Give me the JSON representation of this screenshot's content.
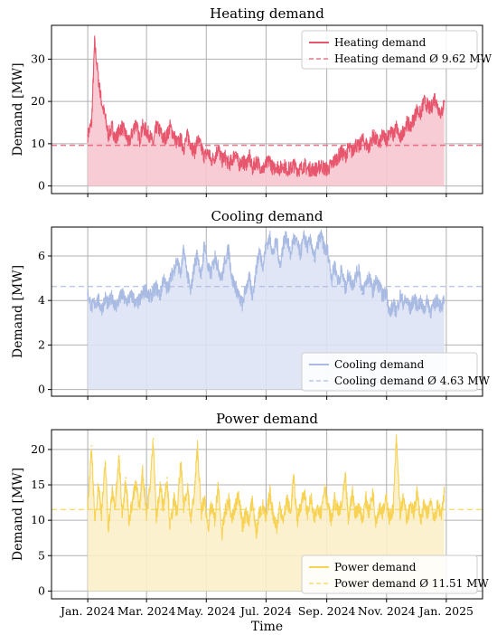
{
  "chart_data": [
    {
      "type": "area",
      "title": "Heating demand",
      "ylabel": "Demand [MW]",
      "ylim": [
        -1.8,
        38
      ],
      "yticks": [
        0,
        10,
        20,
        30
      ],
      "color": "#e8566e",
      "fill": "#f7c6cf",
      "mean": 9.62,
      "legend": [
        "Heating demand",
        "Heating demand Ø 9.62 MW"
      ],
      "legend_position": "top-right",
      "x": [
        "2024-01-01",
        "2024-01-05",
        "2024-01-08",
        "2024-01-12",
        "2024-01-15",
        "2024-01-19",
        "2024-01-22",
        "2024-01-26",
        "2024-01-29",
        "2024-02-02",
        "2024-02-05",
        "2024-02-09",
        "2024-02-12",
        "2024-02-16",
        "2024-02-19",
        "2024-02-23",
        "2024-02-26",
        "2024-03-01",
        "2024-03-04",
        "2024-03-08",
        "2024-03-11",
        "2024-03-15",
        "2024-03-18",
        "2024-03-22",
        "2024-03-25",
        "2024-03-29",
        "2024-04-01",
        "2024-04-05",
        "2024-04-08",
        "2024-04-12",
        "2024-04-15",
        "2024-04-19",
        "2024-04-22",
        "2024-04-26",
        "2024-04-29",
        "2024-05-03",
        "2024-05-06",
        "2024-05-10",
        "2024-05-13",
        "2024-05-17",
        "2024-05-20",
        "2024-05-24",
        "2024-05-27",
        "2024-05-31",
        "2024-06-03",
        "2024-06-07",
        "2024-06-10",
        "2024-06-14",
        "2024-06-17",
        "2024-06-21",
        "2024-06-24",
        "2024-06-28",
        "2024-07-01",
        "2024-07-05",
        "2024-07-08",
        "2024-07-12",
        "2024-07-15",
        "2024-07-19",
        "2024-07-22",
        "2024-07-26",
        "2024-07-29",
        "2024-08-02",
        "2024-08-05",
        "2024-08-09",
        "2024-08-12",
        "2024-08-16",
        "2024-08-19",
        "2024-08-23",
        "2024-08-26",
        "2024-08-30",
        "2024-09-02",
        "2024-09-06",
        "2024-09-09",
        "2024-09-13",
        "2024-09-16",
        "2024-09-20",
        "2024-09-23",
        "2024-09-27",
        "2024-09-30",
        "2024-10-04",
        "2024-10-07",
        "2024-10-11",
        "2024-10-14",
        "2024-10-18",
        "2024-10-21",
        "2024-10-25",
        "2024-10-28",
        "2024-11-01",
        "2024-11-04",
        "2024-11-08",
        "2024-11-11",
        "2024-11-15",
        "2024-11-18",
        "2024-11-22",
        "2024-11-25",
        "2024-11-29",
        "2024-12-02",
        "2024-12-06",
        "2024-12-09",
        "2024-12-13",
        "2024-12-16",
        "2024-12-20",
        "2024-12-23",
        "2024-12-27",
        "2024-12-30"
      ],
      "y": [
        12,
        15,
        34,
        25,
        20,
        16,
        12,
        14,
        11,
        13,
        14,
        12,
        10,
        13,
        15,
        11,
        14,
        13,
        12,
        10,
        14,
        13,
        11,
        12,
        14,
        12,
        10,
        11,
        9,
        12,
        10,
        8,
        11,
        9,
        7,
        8,
        6,
        7,
        9,
        6,
        7,
        5,
        6,
        8,
        5,
        6,
        5,
        7,
        4,
        6,
        5,
        4,
        5,
        6,
        4,
        5,
        4,
        5,
        4,
        4,
        5,
        4,
        4,
        5,
        4,
        4,
        4,
        4,
        5,
        4,
        4,
        5,
        6,
        7,
        8,
        7,
        9,
        8,
        10,
        9,
        11,
        10,
        9,
        12,
        11,
        10,
        12,
        11,
        13,
        12,
        14,
        11,
        13,
        15,
        14,
        16,
        18,
        17,
        20,
        19,
        18,
        21,
        19,
        17,
        20
      ]
    },
    {
      "type": "area",
      "title": "Cooling demand",
      "ylabel": "Demand [MW]",
      "ylim": [
        -0.3,
        7.3
      ],
      "yticks": [
        0,
        2,
        4,
        6
      ],
      "color": "#a9bbe3",
      "fill": "#dde3f4",
      "mean": 4.63,
      "legend": [
        "Cooling demand",
        "Cooling demand Ø 4.63 MW"
      ],
      "legend_position": "bottom-right",
      "x": [
        "2024-01-01",
        "2024-01-05",
        "2024-01-08",
        "2024-01-12",
        "2024-01-15",
        "2024-01-19",
        "2024-01-22",
        "2024-01-26",
        "2024-01-29",
        "2024-02-02",
        "2024-02-05",
        "2024-02-09",
        "2024-02-12",
        "2024-02-16",
        "2024-02-19",
        "2024-02-23",
        "2024-02-26",
        "2024-03-01",
        "2024-03-04",
        "2024-03-08",
        "2024-03-11",
        "2024-03-15",
        "2024-03-18",
        "2024-03-22",
        "2024-03-25",
        "2024-03-29",
        "2024-04-01",
        "2024-04-05",
        "2024-04-08",
        "2024-04-12",
        "2024-04-15",
        "2024-04-19",
        "2024-04-22",
        "2024-04-26",
        "2024-04-29",
        "2024-05-03",
        "2024-05-06",
        "2024-05-10",
        "2024-05-13",
        "2024-05-17",
        "2024-05-20",
        "2024-05-24",
        "2024-05-27",
        "2024-05-31",
        "2024-06-03",
        "2024-06-07",
        "2024-06-10",
        "2024-06-14",
        "2024-06-17",
        "2024-06-21",
        "2024-06-24",
        "2024-06-28",
        "2024-07-01",
        "2024-07-05",
        "2024-07-08",
        "2024-07-12",
        "2024-07-15",
        "2024-07-19",
        "2024-07-22",
        "2024-07-26",
        "2024-07-29",
        "2024-08-02",
        "2024-08-05",
        "2024-08-09",
        "2024-08-12",
        "2024-08-16",
        "2024-08-19",
        "2024-08-23",
        "2024-08-26",
        "2024-08-30",
        "2024-09-02",
        "2024-09-06",
        "2024-09-09",
        "2024-09-13",
        "2024-09-16",
        "2024-09-20",
        "2024-09-23",
        "2024-09-27",
        "2024-09-30",
        "2024-10-04",
        "2024-10-07",
        "2024-10-11",
        "2024-10-14",
        "2024-10-18",
        "2024-10-21",
        "2024-10-25",
        "2024-10-28",
        "2024-11-01",
        "2024-11-04",
        "2024-11-08",
        "2024-11-11",
        "2024-11-15",
        "2024-11-18",
        "2024-11-22",
        "2024-11-25",
        "2024-11-29",
        "2024-12-02",
        "2024-12-06",
        "2024-12-09",
        "2024-12-13",
        "2024-12-16",
        "2024-12-20",
        "2024-12-23",
        "2024-12-27",
        "2024-12-30"
      ],
      "y": [
        4.3,
        3.7,
        3.9,
        4.0,
        3.6,
        4.1,
        3.8,
        4.2,
        3.7,
        4.0,
        4.3,
        3.9,
        4.1,
        4.2,
        3.8,
        4.0,
        4.3,
        4.5,
        4.1,
        4.4,
        4.6,
        4.2,
        5.0,
        4.5,
        4.9,
        5.4,
        5.8,
        5.2,
        6.3,
        5.1,
        4.4,
        5.6,
        6.1,
        5.0,
        6.6,
        5.4,
        5.2,
        6.0,
        5.5,
        5.0,
        5.8,
        6.3,
        5.0,
        4.6,
        4.2,
        3.8,
        4.5,
        5.0,
        4.2,
        5.4,
        6.2,
        5.6,
        6.5,
        6.8,
        6.1,
        6.7,
        5.5,
        6.6,
        6.9,
        6.0,
        6.8,
        6.5,
        6.1,
        6.9,
        6.4,
        6.7,
        5.8,
        6.6,
        6.9,
        6.3,
        6.2,
        5.0,
        5.6,
        4.8,
        5.4,
        4.5,
        5.2,
        4.7,
        5.0,
        5.5,
        4.3,
        4.8,
        5.1,
        4.4,
        4.9,
        4.6,
        4.2,
        4.4,
        3.4,
        3.8,
        3.5,
        4.2,
        3.9,
        4.0,
        3.6,
        4.1,
        3.8,
        3.9,
        3.6,
        4.0,
        3.5,
        3.8,
        4.1,
        3.6,
        4.0
      ]
    },
    {
      "type": "area",
      "title": "Power demand",
      "ylabel": "Demand [MW]",
      "xlabel": "Time",
      "ylim": [
        -1.1,
        22.8
      ],
      "yticks": [
        0,
        5,
        10,
        15,
        20
      ],
      "color": "#f7d253",
      "fill": "#fcefc9",
      "mean": 11.51,
      "legend": [
        "Power demand",
        "Power demand Ø 11.51 MW"
      ],
      "legend_position": "bottom-right",
      "x": [
        "2024-01-01",
        "2024-01-05",
        "2024-01-08",
        "2024-01-12",
        "2024-01-15",
        "2024-01-19",
        "2024-01-22",
        "2024-01-26",
        "2024-01-29",
        "2024-02-02",
        "2024-02-05",
        "2024-02-09",
        "2024-02-12",
        "2024-02-16",
        "2024-02-19",
        "2024-02-23",
        "2024-02-26",
        "2024-03-01",
        "2024-03-04",
        "2024-03-08",
        "2024-03-11",
        "2024-03-15",
        "2024-03-18",
        "2024-03-22",
        "2024-03-25",
        "2024-03-29",
        "2024-04-01",
        "2024-04-05",
        "2024-04-08",
        "2024-04-12",
        "2024-04-15",
        "2024-04-19",
        "2024-04-22",
        "2024-04-26",
        "2024-04-29",
        "2024-05-03",
        "2024-05-06",
        "2024-05-10",
        "2024-05-13",
        "2024-05-17",
        "2024-05-20",
        "2024-05-24",
        "2024-05-27",
        "2024-05-31",
        "2024-06-03",
        "2024-06-07",
        "2024-06-10",
        "2024-06-14",
        "2024-06-17",
        "2024-06-21",
        "2024-06-24",
        "2024-06-28",
        "2024-07-01",
        "2024-07-05",
        "2024-07-08",
        "2024-07-12",
        "2024-07-15",
        "2024-07-19",
        "2024-07-22",
        "2024-07-26",
        "2024-07-29",
        "2024-08-02",
        "2024-08-05",
        "2024-08-09",
        "2024-08-12",
        "2024-08-16",
        "2024-08-19",
        "2024-08-23",
        "2024-08-26",
        "2024-08-30",
        "2024-09-02",
        "2024-09-06",
        "2024-09-09",
        "2024-09-13",
        "2024-09-16",
        "2024-09-20",
        "2024-09-23",
        "2024-09-27",
        "2024-09-30",
        "2024-10-04",
        "2024-10-07",
        "2024-10-11",
        "2024-10-14",
        "2024-10-18",
        "2024-10-21",
        "2024-10-25",
        "2024-10-28",
        "2024-11-01",
        "2024-11-04",
        "2024-11-08",
        "2024-11-11",
        "2024-11-15",
        "2024-11-18",
        "2024-11-22",
        "2024-11-25",
        "2024-11-29",
        "2024-12-02",
        "2024-12-06",
        "2024-12-09",
        "2024-12-13",
        "2024-12-16",
        "2024-12-20",
        "2024-12-23",
        "2024-12-27",
        "2024-12-30"
      ],
      "y": [
        12,
        20.5,
        10,
        15,
        11,
        18,
        9,
        14,
        12,
        19,
        11,
        16,
        10,
        13,
        15,
        12,
        17,
        11,
        14,
        21.5,
        10,
        15,
        12,
        16,
        9,
        13,
        11,
        18,
        12,
        15,
        10,
        14,
        20.5,
        11,
        13,
        9,
        12,
        10,
        15,
        8,
        11,
        13,
        10,
        12,
        14,
        9,
        11,
        10,
        13,
        8,
        11,
        12,
        10,
        14,
        11,
        9,
        12,
        10,
        13,
        11,
        16,
        10,
        12,
        14,
        11,
        13,
        10,
        12,
        11,
        15,
        12,
        10,
        13,
        11,
        12,
        16,
        10,
        14,
        11,
        12,
        10,
        13,
        11,
        14,
        10,
        12,
        11,
        13,
        10,
        12,
        21.5,
        11,
        13,
        10,
        12,
        11,
        14,
        10,
        12,
        11,
        13,
        10,
        12,
        11,
        14
      ]
    }
  ],
  "xaxis": {
    "ticks": [
      "2024-01-01",
      "2024-03-01",
      "2024-05-01",
      "2024-07-01",
      "2024-09-01",
      "2024-11-01",
      "2025-01-01"
    ],
    "tick_labels": [
      "Jan. 2024",
      "Mar. 2024",
      "May. 2024",
      "Jul. 2024",
      "Sep. 2024",
      "Nov. 2024",
      "Jan. 2025"
    ],
    "range": [
      "2023-11-25",
      "2025-02-07"
    ]
  }
}
